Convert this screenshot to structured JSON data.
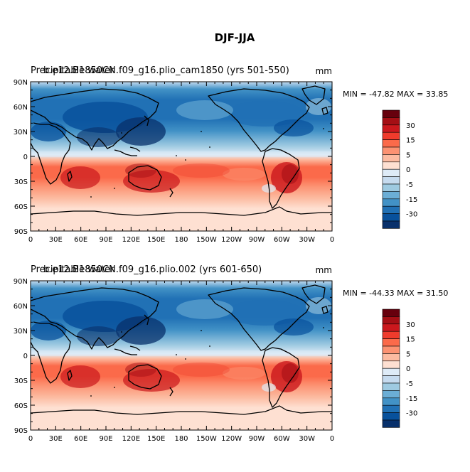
{
  "figure": {
    "title": "DJF-JJA"
  },
  "chart_data": [
    {
      "type": "heatmap",
      "title": "Precipitable water",
      "subtitle": "b.e12.B1850CN.f09_g16.plio_cam1850 (yrs 501-550)",
      "units": "mm",
      "stats": "MIN = -47.82  MAX =  33.85",
      "x_ticks": [
        "0",
        "30E",
        "60E",
        "90E",
        "120E",
        "150E",
        "180",
        "150W",
        "120W",
        "90W",
        "60W",
        "30W",
        "0"
      ],
      "y_ticks": [
        "90N",
        "60N",
        "30N",
        "0",
        "30S",
        "60S",
        "90S"
      ],
      "colorbar_labels": [
        "30",
        "15",
        "5",
        "0",
        "-5",
        "-15",
        "-30"
      ],
      "field": "Northern Hemisphere negative (drier in DJF), Southern Hemisphere positive; strongest negatives over NH continents (about -30 to -45), strongest positives over Australia and South America (about 25 to 33)"
    },
    {
      "type": "heatmap",
      "title": "Precipitable water",
      "subtitle": "b.e12.B1850CN.f09_g16.plio.002 (yrs 601-650)",
      "units": "mm",
      "stats": "MIN = -44.33  MAX =  31.50",
      "x_ticks": [
        "0",
        "30E",
        "60E",
        "90E",
        "120E",
        "150E",
        "180",
        "150W",
        "120W",
        "90W",
        "60W",
        "30W",
        "0"
      ],
      "y_ticks": [
        "90N",
        "60N",
        "30N",
        "0",
        "30S",
        "60S",
        "90S"
      ],
      "colorbar_labels": [
        "30",
        "15",
        "5",
        "0",
        "-5",
        "-15",
        "-30"
      ],
      "field": "Northern Hemisphere negative, Southern Hemisphere positive, similar pattern with slightly weaker extremes"
    }
  ],
  "colors": {
    "levels": [
      "#67000d",
      "#a50f15",
      "#cb181d",
      "#ef3b2c",
      "#fb6a4a",
      "#fc9272",
      "#fcbba1",
      "#fee0d2",
      "#deebf7",
      "#c6dbef",
      "#9ecae1",
      "#6baed6",
      "#4292c6",
      "#2171b5",
      "#08519c",
      "#08306b"
    ]
  }
}
